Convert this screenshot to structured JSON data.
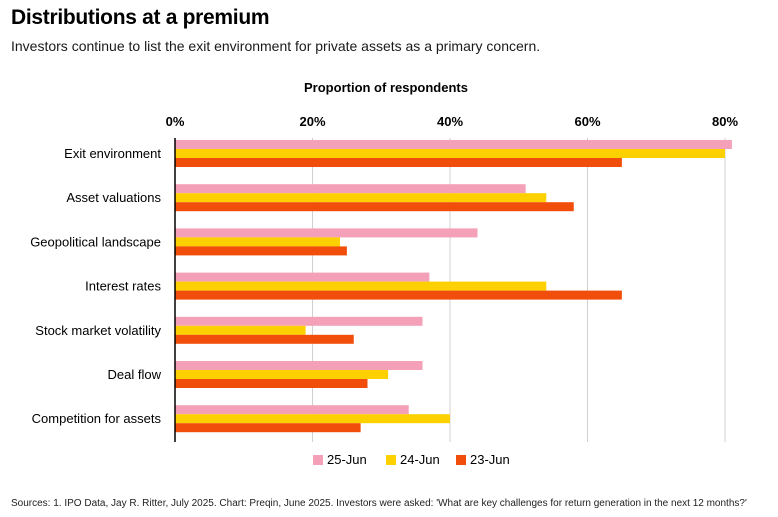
{
  "header": {
    "title": "Distributions at a premium",
    "subtitle": "Investors continue to list the exit environment for private assets as a primary concern."
  },
  "footer": {
    "source": "Sources: 1. IPO Data, Jay R. Ritter, July 2025. Chart: Preqin, June 2025. Investors were asked: 'What are key challenges for return generation in the next 12 months?'"
  },
  "chart_data": {
    "type": "bar",
    "orientation": "horizontal",
    "axis_title": "Proportion of respondents",
    "xlim": [
      0,
      80
    ],
    "ticks": [
      0,
      20,
      40,
      60,
      80
    ],
    "tick_labels": [
      "0%",
      "20%",
      "40%",
      "60%",
      "80%"
    ],
    "categories": [
      "Exit environment",
      "Asset valuations",
      "Geopolitical landscape",
      "Interest rates",
      "Stock market volatility",
      "Deal flow",
      "Competition for assets"
    ],
    "series": [
      {
        "name": "25-Jun",
        "color": "#f4a0b8",
        "values": [
          81,
          51,
          44,
          37,
          36,
          36,
          34
        ]
      },
      {
        "name": "24-Jun",
        "color": "#fdd000",
        "values": [
          80,
          54,
          24,
          54,
          19,
          31,
          40
        ]
      },
      {
        "name": "23-Jun",
        "color": "#f04e0a",
        "values": [
          65,
          58,
          25,
          65,
          26,
          28,
          27
        ]
      }
    ],
    "grid": true,
    "legend_position": "bottom"
  }
}
